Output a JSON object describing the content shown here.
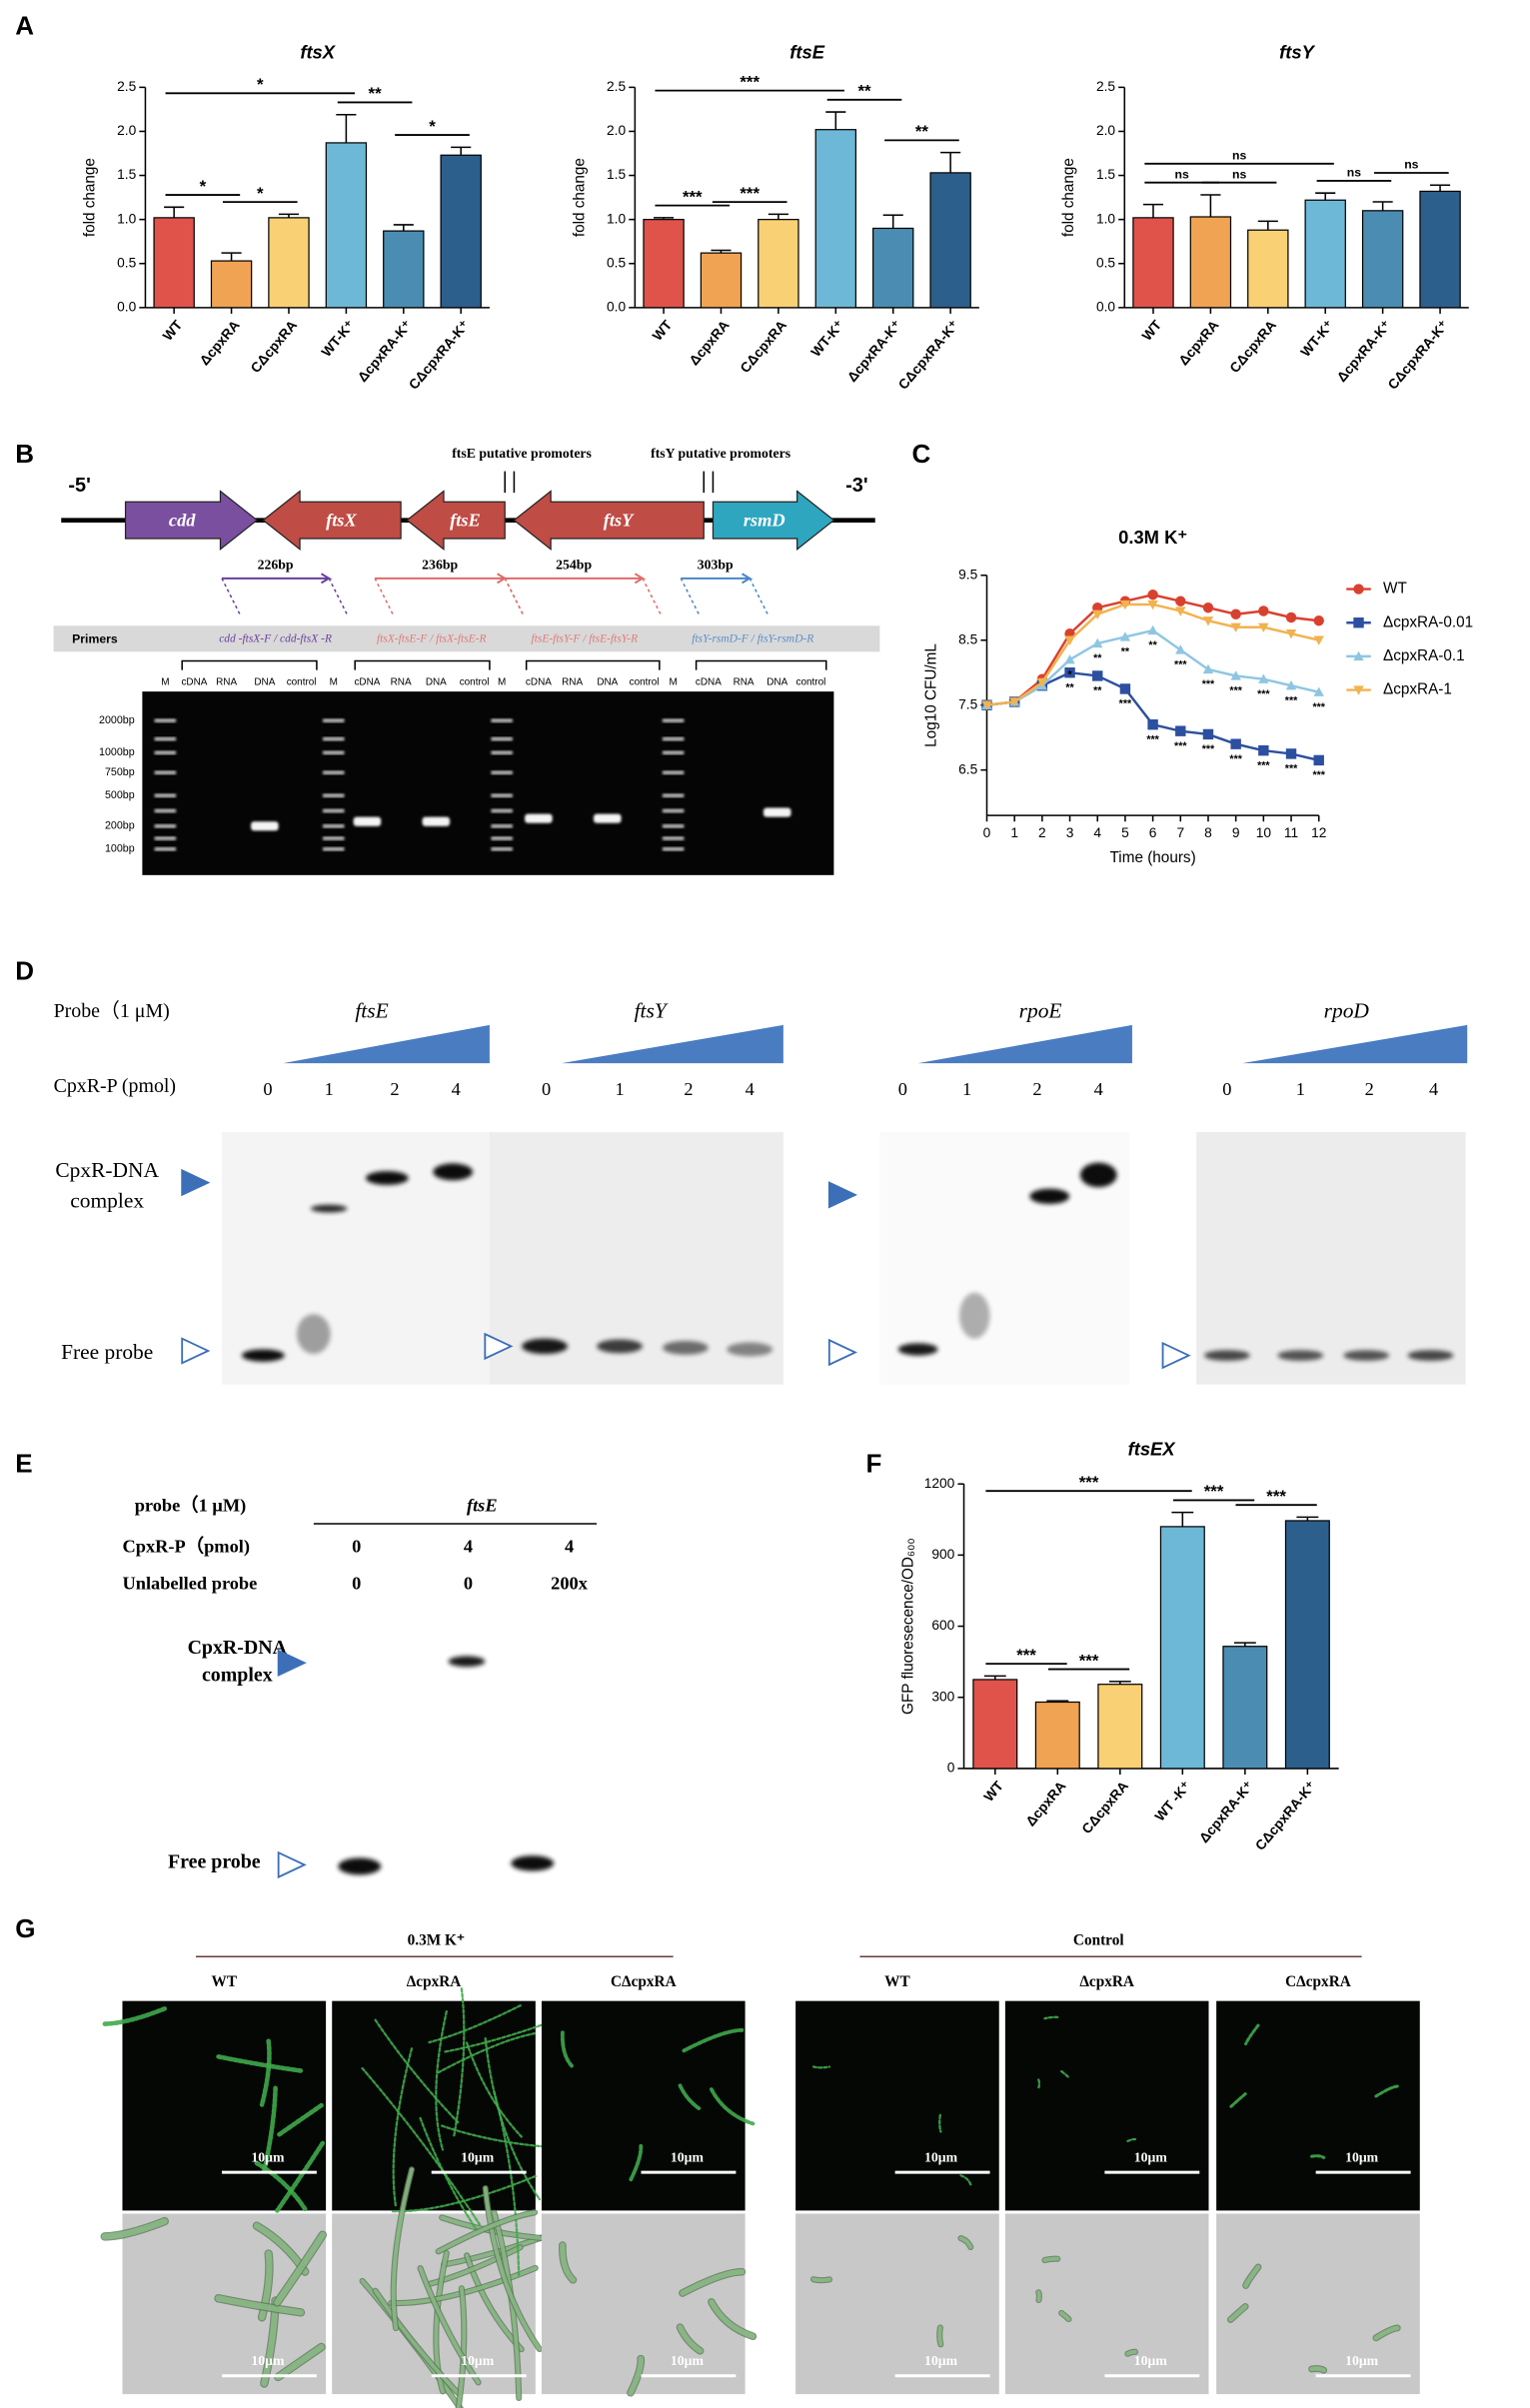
{
  "panel_letters": [
    "A",
    "B",
    "C",
    "D",
    "E",
    "F",
    "G"
  ],
  "chart_data": [
    {
      "type": "bar",
      "title": "ftsX",
      "y_label": "fold change",
      "categories": [
        "WT",
        "ΔcpxRA",
        "CΔcpxRA",
        "WT-K⁺",
        "ΔcpxRA-K⁺",
        "CΔcpxRA-K⁺"
      ],
      "values": [
        1.02,
        0.53,
        1.02,
        1.87,
        0.87,
        1.73
      ],
      "errors": [
        0.12,
        0.09,
        0.04,
        0.32,
        0.07,
        0.09
      ],
      "colors": [
        "#e0534b",
        "#f0a352",
        "#f9d074",
        "#6cb8d6",
        "#4b8db2",
        "#2d5f8c"
      ],
      "ylim": [
        0,
        2.5
      ],
      "yticks": [
        {
          "value": 0,
          "label": "0.0"
        },
        0.5,
        {
          "value": 1,
          "label": "1.0"
        },
        1.5,
        {
          "value": 2,
          "label": "2.0"
        },
        2.5
      ],
      "brackets": [
        {
          "label": "*",
          "from": 0,
          "to": 1
        },
        {
          "label": "*",
          "from": 1,
          "to": 2
        },
        {
          "label": "*",
          "from": 0,
          "to": 3
        },
        {
          "label": "**",
          "from": 3,
          "to": 4
        },
        {
          "label": "*",
          "from": 4,
          "to": 5
        }
      ]
    },
    {
      "type": "bar",
      "title": "ftsE",
      "y_label": "fold change",
      "categories": [
        "WT",
        "ΔcpxRA",
        "CΔcpxRA",
        "WT-K⁺",
        "ΔcpxRA-K⁺",
        "CΔcpxRA-K⁺"
      ],
      "values": [
        1.0,
        0.62,
        1.0,
        2.02,
        0.9,
        1.53
      ],
      "errors": [
        0.02,
        0.03,
        0.06,
        0.2,
        0.15,
        0.23
      ],
      "colors": [
        "#e0534b",
        "#f0a352",
        "#f9d074",
        "#6cb8d6",
        "#4b8db2",
        "#2d5f8c"
      ],
      "ylim": [
        0,
        2.5
      ],
      "yticks": [
        {
          "value": 0,
          "label": "0.0"
        },
        0.5,
        {
          "value": 1,
          "label": "1.0"
        },
        1.5,
        {
          "value": 2,
          "label": "2.0"
        },
        2.5
      ],
      "brackets": [
        {
          "label": "***",
          "from": 0,
          "to": 1
        },
        {
          "label": "***",
          "from": 1,
          "to": 2
        },
        {
          "label": "***",
          "from": 0,
          "to": 3
        },
        {
          "label": "**",
          "from": 3,
          "to": 4
        },
        {
          "label": "**",
          "from": 4,
          "to": 5
        }
      ]
    },
    {
      "type": "bar",
      "title": "ftsY",
      "y_label": "fold change",
      "categories": [
        "WT",
        "ΔcpxRA",
        "CΔcpxRA",
        "WT-K⁺",
        "ΔcpxRA-K⁺",
        "CΔcpxRA-K⁺"
      ],
      "values": [
        1.02,
        1.03,
        0.88,
        1.22,
        1.1,
        1.32
      ],
      "errors": [
        0.15,
        0.25,
        0.1,
        0.08,
        0.1,
        0.07
      ],
      "colors": [
        "#e0534b",
        "#f0a352",
        "#f9d074",
        "#6cb8d6",
        "#4b8db2",
        "#2d5f8c"
      ],
      "ylim": [
        0,
        2.5
      ],
      "yticks": [
        {
          "value": 0,
          "label": "0.0"
        },
        0.5,
        {
          "value": 1,
          "label": "1.0"
        },
        1.5,
        {
          "value": 2,
          "label": "2.0"
        },
        2.5
      ],
      "brackets": [
        {
          "label": "ns",
          "from": 0,
          "to": 1
        },
        {
          "label": "ns",
          "from": 1,
          "to": 2
        },
        {
          "label": "ns",
          "from": 0,
          "to": 3
        },
        {
          "label": "ns",
          "from": 3,
          "to": 4
        },
        {
          "label": "ns",
          "from": 4,
          "to": 5
        }
      ]
    },
    {
      "type": "line",
      "title": "0.3M K⁺",
      "x_label": "Time (hours)",
      "y_label": "Log10 CFU/mL",
      "x": [
        0,
        1,
        2,
        3,
        4,
        5,
        6,
        7,
        8,
        9,
        10,
        11,
        12
      ],
      "xlim": [
        0,
        12
      ],
      "xticks": [
        0,
        1,
        2,
        3,
        4,
        5,
        6,
        7,
        8,
        9,
        10,
        11,
        12
      ],
      "ylim": [
        5.8,
        9.5
      ],
      "yticks": [
        6.5,
        7.5,
        8.5,
        9.5
      ],
      "series": [
        {
          "name": "WT",
          "color": "#d9412f",
          "marker": "circle",
          "values": [
            7.5,
            7.55,
            7.9,
            8.6,
            9.0,
            9.1,
            9.2,
            9.1,
            9.0,
            8.9,
            8.95,
            8.85,
            8.8
          ]
        },
        {
          "name": "ΔcpxRA-0.01",
          "color": "#2c4fa0",
          "marker": "square",
          "values": [
            7.5,
            7.55,
            7.8,
            8.0,
            7.95,
            7.75,
            7.2,
            7.1,
            7.05,
            6.9,
            6.8,
            6.75,
            6.65
          ],
          "point_labels": [
            null,
            null,
            null,
            "**",
            "**",
            "***",
            "***",
            "***",
            "***",
            "***",
            "***",
            "***",
            "***"
          ]
        },
        {
          "name": "ΔcpxRA-0.1",
          "color": "#8ec6e2",
          "marker": "triangle-up",
          "values": [
            7.5,
            7.55,
            7.8,
            8.2,
            8.45,
            8.55,
            8.65,
            8.35,
            8.05,
            7.95,
            7.9,
            7.8,
            7.7
          ],
          "point_labels": [
            null,
            null,
            null,
            "*",
            "**",
            "**",
            "**",
            "***",
            "***",
            "***",
            "***",
            "***",
            "***"
          ]
        },
        {
          "name": "ΔcpxRA-1",
          "color": "#f2b24e",
          "marker": "triangle-down",
          "values": [
            7.5,
            7.55,
            7.85,
            8.5,
            8.9,
            9.05,
            9.05,
            8.95,
            8.8,
            8.7,
            8.7,
            8.6,
            8.5
          ]
        }
      ]
    },
    {
      "type": "bar",
      "title": "ftsEX",
      "y_label": "GFP fluoresecence/OD₆₀₀",
      "categories": [
        "WT",
        "ΔcpxRA",
        "CΔcpxRA",
        "WT -K⁺",
        "ΔcpxRA-K⁺",
        "CΔcpxRA-K⁺"
      ],
      "values": [
        375,
        280,
        355,
        1020,
        515,
        1045
      ],
      "errors": [
        15,
        5,
        12,
        60,
        15,
        15
      ],
      "colors": [
        "#e0534b",
        "#f0a352",
        "#f9d074",
        "#6cb8d6",
        "#4b8db2",
        "#2d5f8c"
      ],
      "ylim": [
        0,
        1200
      ],
      "yticks": [
        0,
        300,
        600,
        900,
        1200
      ],
      "brackets": [
        {
          "label": "***",
          "from": 0,
          "to": 1
        },
        {
          "label": "***",
          "from": 1,
          "to": 2
        },
        {
          "label": "***",
          "from": 0,
          "to": 3
        },
        {
          "label": "***",
          "from": 3,
          "to": 4
        },
        {
          "label": "***",
          "from": 4,
          "to": 5
        }
      ]
    }
  ],
  "gene_map": {
    "ends": [
      "-5'",
      "-3'"
    ],
    "genes": [
      "cdd",
      "ftsX",
      "ftsE",
      "ftsY",
      "rsmD"
    ],
    "promoters": [
      "ftsE putative promoters",
      "ftsY putative promoters"
    ],
    "amplicons": [
      "226bp",
      "236bp",
      "254bp",
      "303bp"
    ],
    "primers_label": "Primers",
    "primers": [
      "cdd -ftsX-F / cdd-ftsX -R",
      "ftsX-ftsE-F / ftsX-ftsE-R",
      "ftsE-ftsY-F / ftsE-ftsY-R",
      "ftsY-rsmD-F / ftsY-rsmD-R"
    ],
    "lanes": [
      [
        "M",
        "cDNA",
        "RNA",
        "DNA",
        "control"
      ],
      [
        "M",
        "cDNA",
        "RNA",
        "DNA",
        "control"
      ],
      [
        "M",
        "cDNA",
        "RNA",
        "DNA",
        "control"
      ],
      [
        "M",
        "cDNA",
        "RNA",
        "DNA",
        "control"
      ]
    ],
    "ladder": [
      "2000bp",
      "1000bp",
      "750bp",
      "500bp",
      "200bp",
      "100bp"
    ]
  },
  "emsa": {
    "probe_label": "Probe（1 μM)",
    "dose_label": "CpxR-P (pmol)",
    "probes": [
      "ftsE",
      "ftsY",
      "rpoE",
      "rpoD"
    ],
    "doses": [
      [
        0,
        1,
        2,
        4
      ],
      [
        0,
        1,
        2,
        4
      ],
      [
        0,
        1,
        2,
        4
      ],
      [
        0,
        1,
        2,
        4
      ]
    ],
    "complex_label": [
      "CpxR-DNA",
      "complex"
    ],
    "free_label": "Free probe"
  },
  "competition": {
    "probe_label": "probe（1 μM)",
    "probe": "ftsE",
    "rows": [
      {
        "label": "CpxR-P（pmol)",
        "values": [
          0,
          4,
          4
        ]
      },
      {
        "label": "Unlabelled probe",
        "values": [
          0,
          0,
          "200x"
        ]
      }
    ],
    "complex_label": [
      "CpxR-DNA",
      "complex"
    ],
    "free_label": "Free probe"
  },
  "microscopy": {
    "conditions": [
      "0.3M K⁺",
      "Control"
    ],
    "strains": [
      [
        "WT",
        "ΔcpxRA",
        "CΔcpxRA"
      ],
      [
        "WT",
        "ΔcpxRA",
        "CΔcpxRA"
      ]
    ],
    "scale_bar": "10μm"
  }
}
